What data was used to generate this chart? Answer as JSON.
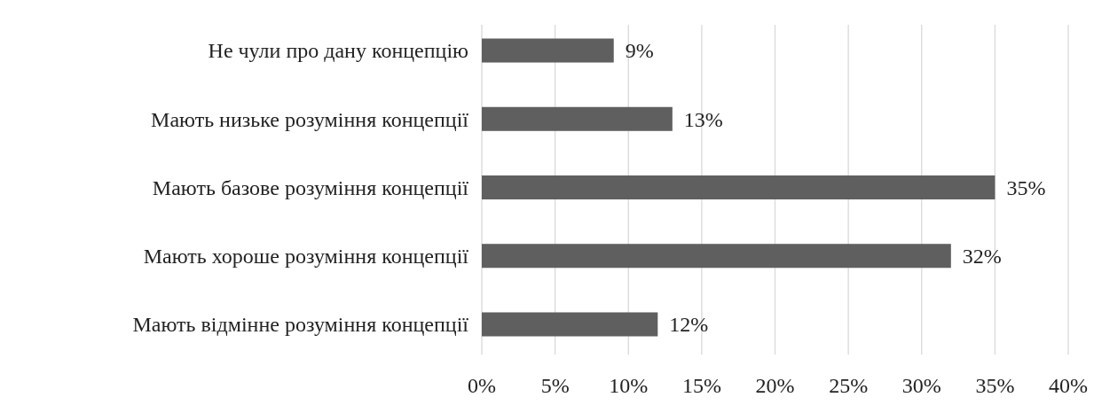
{
  "chart_data": {
    "type": "bar",
    "orientation": "horizontal",
    "categories": [
      "Не чули про дану концепцію",
      "Мають низьке розуміння концепції",
      "Мають базове розуміння концепції",
      "Мають хороше розуміння концепції",
      "Мають відмінне розуміння концепції"
    ],
    "values": [
      9,
      13,
      35,
      32,
      12
    ],
    "value_labels": [
      "9%",
      "13%",
      "35%",
      "32%",
      "12%"
    ],
    "color": "#5f5f5f",
    "xlim": [
      0,
      40
    ],
    "xticks": [
      {
        "value": 0,
        "label": "0%"
      },
      {
        "value": 5,
        "label": "5%"
      },
      {
        "value": 10,
        "label": "10%"
      },
      {
        "value": 15,
        "label": "15%"
      },
      {
        "value": 20,
        "label": "20%"
      },
      {
        "value": 25,
        "label": "25%"
      },
      {
        "value": 30,
        "label": "30%"
      },
      {
        "value": 35,
        "label": "35%"
      },
      {
        "value": 40,
        "label": "40%"
      }
    ],
    "grid": "x"
  }
}
